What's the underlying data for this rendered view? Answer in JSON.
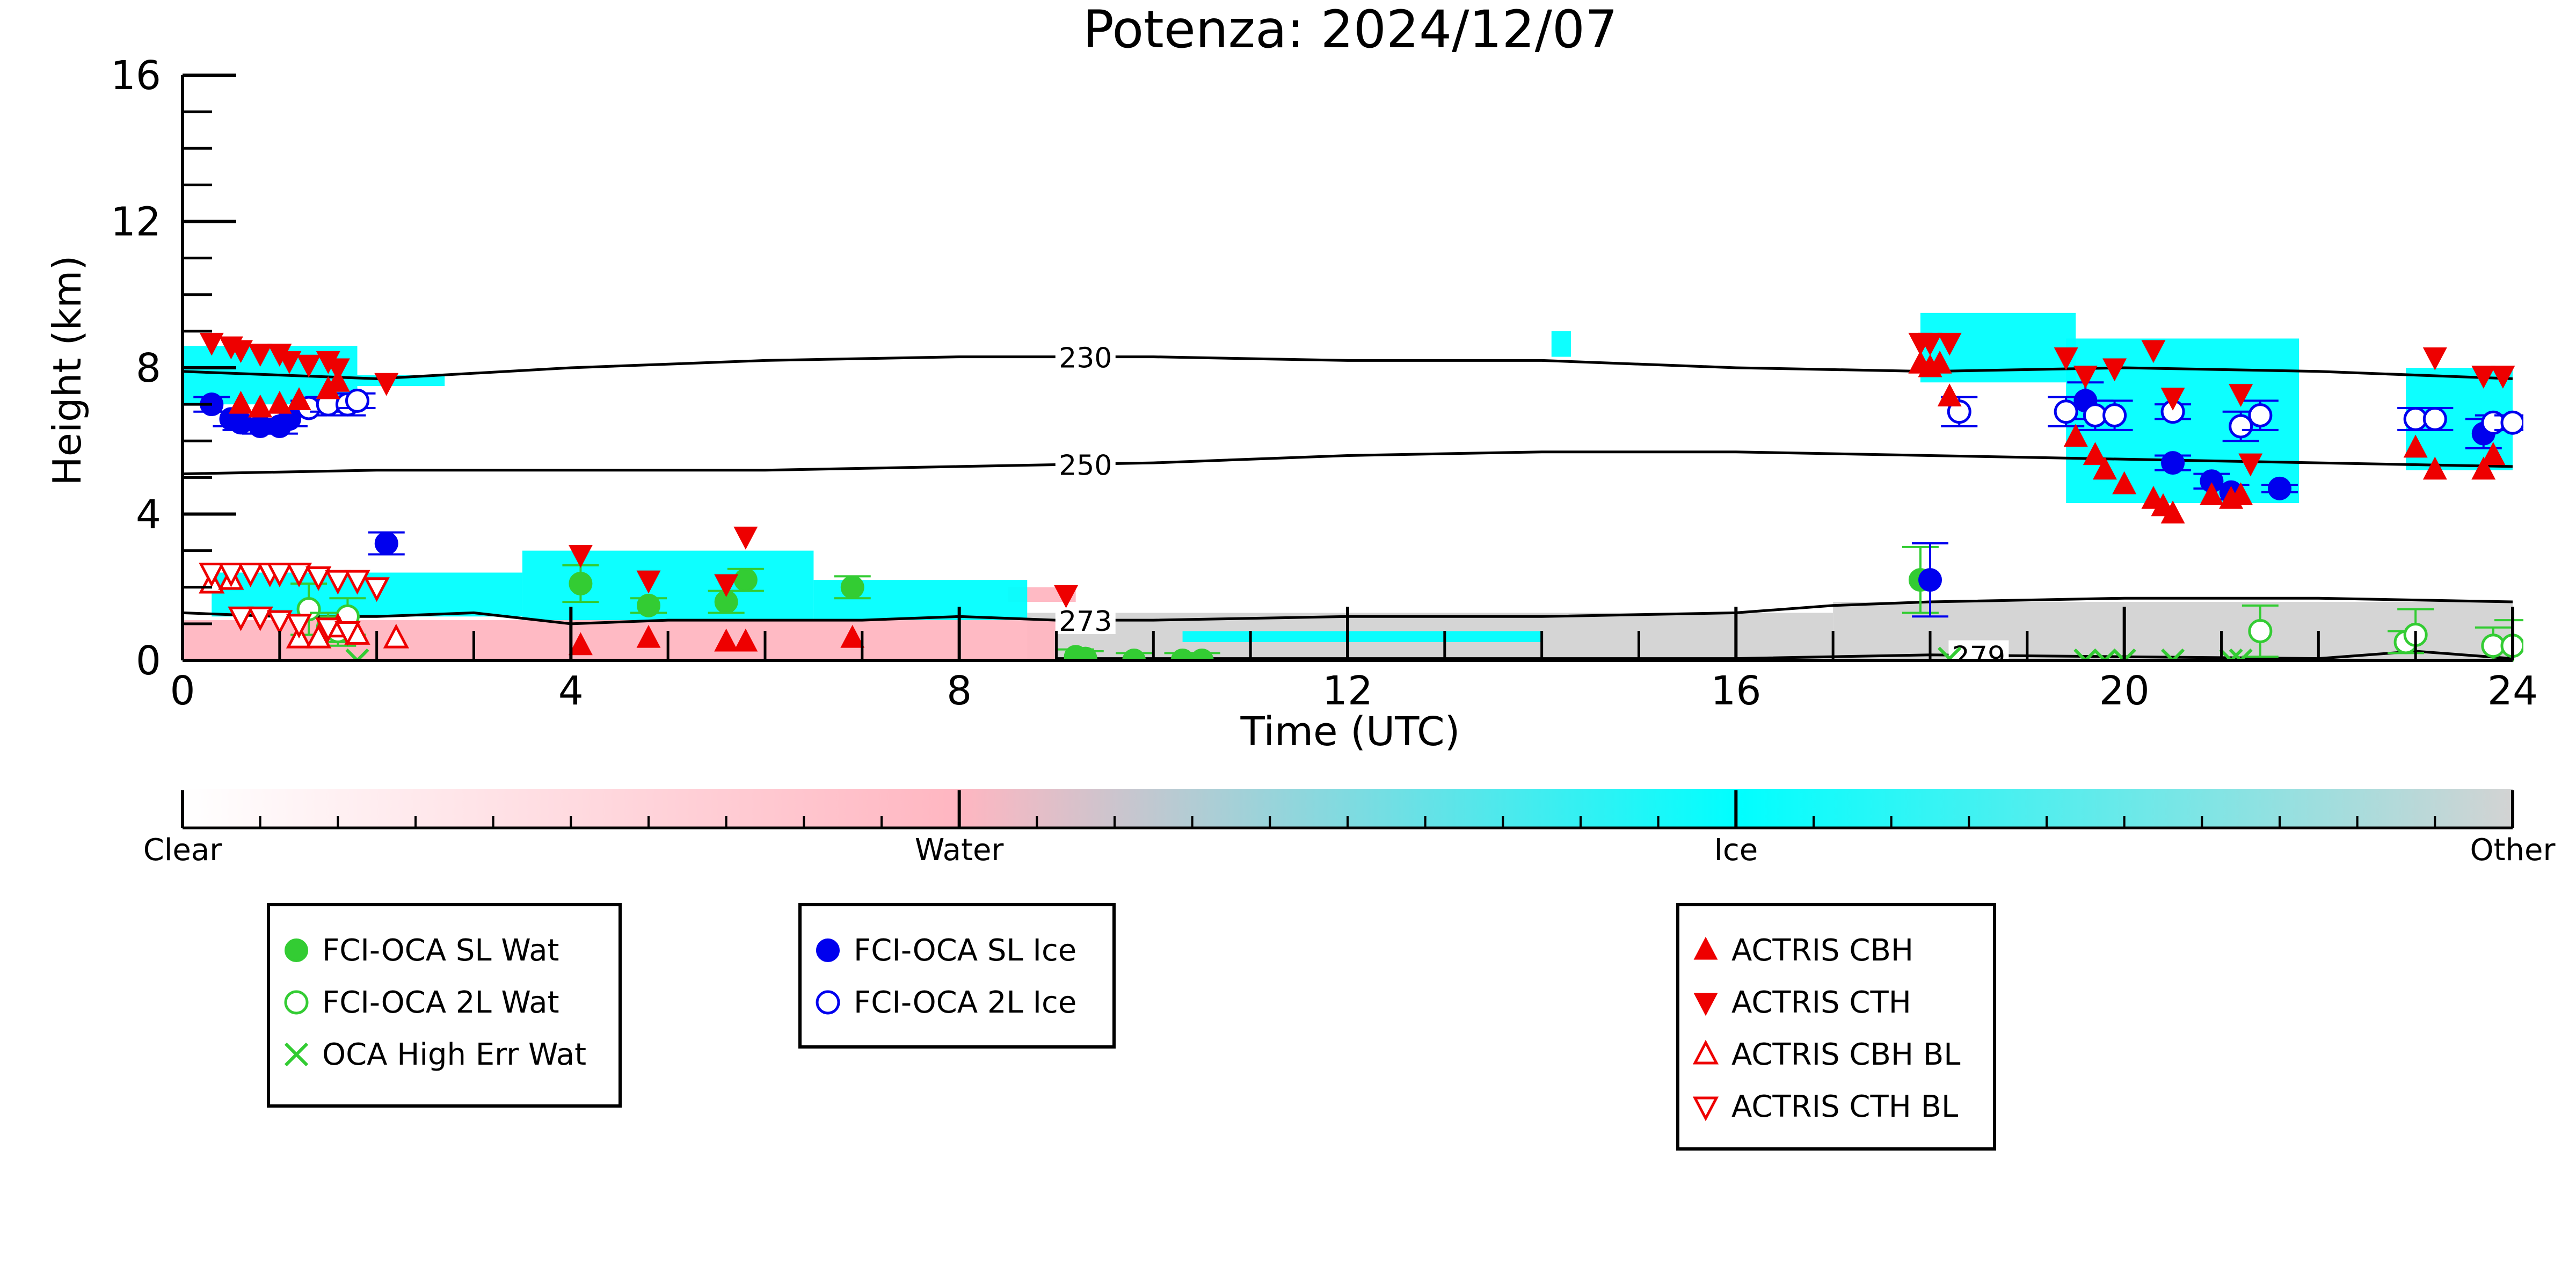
{
  "chart_data": {
    "type": "scatter",
    "title": "Potenza: 2024/12/07",
    "xlabel": "Time (UTC)",
    "ylabel": "Height (km)",
    "xlim": [
      0,
      24
    ],
    "ylim": [
      0,
      16
    ],
    "xticks": [
      0,
      4,
      8,
      12,
      16,
      20,
      24
    ],
    "yticks": [
      0,
      4,
      8,
      12,
      16
    ],
    "colorbar": {
      "labels": [
        "Clear",
        "Water",
        "Ice",
        "Other"
      ],
      "colors": [
        "#ffffff",
        "#ffb6c1",
        "#00ffff",
        "#d3d3d3"
      ]
    },
    "contours": [
      {
        "label": "230",
        "label_x": 9.3,
        "points": [
          [
            0,
            7.9
          ],
          [
            2,
            7.7
          ],
          [
            4,
            8.0
          ],
          [
            6,
            8.2
          ],
          [
            8,
            8.3
          ],
          [
            10,
            8.3
          ],
          [
            12,
            8.2
          ],
          [
            14,
            8.2
          ],
          [
            16,
            8.0
          ],
          [
            18,
            7.9
          ],
          [
            20,
            8.0
          ],
          [
            22,
            7.9
          ],
          [
            24,
            7.7
          ]
        ]
      },
      {
        "label": "250",
        "label_x": 9.3,
        "points": [
          [
            0,
            5.1
          ],
          [
            2,
            5.2
          ],
          [
            4,
            5.2
          ],
          [
            6,
            5.2
          ],
          [
            8,
            5.3
          ],
          [
            10,
            5.4
          ],
          [
            12,
            5.6
          ],
          [
            14,
            5.7
          ],
          [
            16,
            5.7
          ],
          [
            18,
            5.6
          ],
          [
            20,
            5.5
          ],
          [
            22,
            5.4
          ],
          [
            24,
            5.3
          ]
        ]
      },
      {
        "label": "273",
        "label_x": 9.3,
        "points": [
          [
            0,
            1.3
          ],
          [
            1,
            1.2
          ],
          [
            2,
            1.2
          ],
          [
            3,
            1.3
          ],
          [
            4,
            1.0
          ],
          [
            5,
            1.1
          ],
          [
            6,
            1.1
          ],
          [
            7,
            1.1
          ],
          [
            8,
            1.2
          ],
          [
            9,
            1.1
          ],
          [
            10,
            1.1
          ],
          [
            12,
            1.2
          ],
          [
            14,
            1.2
          ],
          [
            16,
            1.3
          ],
          [
            17,
            1.5
          ],
          [
            18,
            1.6
          ],
          [
            20,
            1.7
          ],
          [
            22,
            1.7
          ],
          [
            24,
            1.6
          ]
        ]
      },
      {
        "label": "279",
        "label_x": 18.5,
        "points": [
          [
            9,
            0.05
          ],
          [
            12,
            0.05
          ],
          [
            16,
            0.05
          ],
          [
            18,
            0.15
          ],
          [
            20,
            0.1
          ],
          [
            22,
            0.05
          ],
          [
            23,
            0.25
          ],
          [
            24,
            0.05
          ]
        ]
      }
    ],
    "cloud_regions": [
      {
        "class": "Ice",
        "color": "#00ffff",
        "x0": 0.0,
        "x1": 1.8,
        "y0": 7.0,
        "y1": 8.6
      },
      {
        "class": "Ice",
        "color": "#00ffff",
        "x0": 1.8,
        "x1": 2.7,
        "y0": 7.5,
        "y1": 7.8
      },
      {
        "class": "Ice",
        "color": "#00ffff",
        "x0": 14.1,
        "x1": 14.3,
        "y0": 8.3,
        "y1": 9.0
      },
      {
        "class": "Ice",
        "color": "#00ffff",
        "x0": 17.9,
        "x1": 19.5,
        "y0": 7.6,
        "y1": 9.5
      },
      {
        "class": "Ice",
        "color": "#00ffff",
        "x0": 19.4,
        "x1": 21.8,
        "y0": 4.3,
        "y1": 8.8
      },
      {
        "class": "Ice",
        "color": "#00ffff",
        "x0": 22.9,
        "x1": 24.0,
        "y0": 5.2,
        "y1": 8.0
      },
      {
        "class": "Ice",
        "color": "#00ffff",
        "x0": 0.3,
        "x1": 3.5,
        "y0": 1.2,
        "y1": 2.4
      },
      {
        "class": "Ice",
        "color": "#00ffff",
        "x0": 3.5,
        "x1": 6.5,
        "y0": 1.1,
        "y1": 3.0
      },
      {
        "class": "Ice",
        "color": "#00ffff",
        "x0": 6.5,
        "x1": 8.7,
        "y0": 1.1,
        "y1": 2.2
      },
      {
        "class": "Ice",
        "color": "#00ffff",
        "x0": 10.3,
        "x1": 14.0,
        "y0": 0.5,
        "y1": 0.8
      },
      {
        "class": "Water",
        "color": "#ffb6c1",
        "x0": 0.0,
        "x1": 9.0,
        "y0": 0.0,
        "y1": 1.1
      },
      {
        "class": "Water",
        "color": "#ffb6c1",
        "x0": 8.5,
        "x1": 9.2,
        "y0": 1.6,
        "y1": 2.0
      },
      {
        "class": "Other",
        "color": "#d3d3d3",
        "x0": 8.7,
        "x1": 17.0,
        "y0": 0.0,
        "y1": 1.3
      },
      {
        "class": "Other",
        "color": "#d3d3d3",
        "x0": 17.0,
        "x1": 24.0,
        "y0": 0.0,
        "y1": 1.6
      }
    ],
    "series": [
      {
        "name": "FCI-OCA SL Wat",
        "marker": "circle-filled",
        "color": "#33cc33",
        "points": [
          [
            4.1,
            2.1,
            0.5
          ],
          [
            4.8,
            1.5,
            0.2
          ],
          [
            5.6,
            1.6,
            0.3
          ],
          [
            5.8,
            2.2,
            0.3
          ],
          [
            6.9,
            2.0,
            0.3
          ],
          [
            9.2,
            0.1,
            0.2
          ],
          [
            9.3,
            0.05,
            0.2
          ],
          [
            9.8,
            0.0,
            0.2
          ],
          [
            10.3,
            0.0,
            0.2
          ],
          [
            10.5,
            0.0,
            0.2
          ],
          [
            17.9,
            2.2,
            0.9
          ]
        ]
      },
      {
        "name": "FCI-OCA 2L Wat",
        "marker": "circle-open",
        "color": "#33cc33",
        "points": [
          [
            1.3,
            1.4,
            0.7
          ],
          [
            1.5,
            0.9,
            0.4
          ],
          [
            1.6,
            0.8,
            0.4
          ],
          [
            1.7,
            1.2,
            0.5
          ],
          [
            21.4,
            0.8,
            0.7
          ],
          [
            22.9,
            0.5,
            0.3
          ],
          [
            23.0,
            0.7,
            0.7
          ],
          [
            23.8,
            0.4,
            0.5
          ],
          [
            24.0,
            0.4,
            0.7
          ]
        ]
      },
      {
        "name": "OCA High Err Wat",
        "marker": "x",
        "color": "#33cc33",
        "points": [
          [
            1.8,
            0.0
          ],
          [
            18.2,
            0.05
          ],
          [
            19.6,
            0.0
          ],
          [
            19.8,
            0.0
          ],
          [
            20.0,
            0.0
          ],
          [
            20.5,
            0.0
          ],
          [
            21.1,
            0.0
          ],
          [
            21.2,
            0.0
          ]
        ]
      },
      {
        "name": "FCI-OCA SL Ice",
        "marker": "circle-filled",
        "color": "#0000ee",
        "points": [
          [
            0.3,
            7.0,
            0.2
          ],
          [
            0.5,
            6.6,
            0.2
          ],
          [
            0.6,
            6.5,
            0.2
          ],
          [
            0.8,
            6.4,
            0.2
          ],
          [
            1.0,
            6.4,
            0.2
          ],
          [
            1.1,
            6.6,
            0.2
          ],
          [
            2.1,
            3.2,
            0.3
          ],
          [
            18.0,
            2.2,
            1.0
          ],
          [
            19.6,
            7.1,
            0.5
          ],
          [
            20.5,
            5.4,
            0.2
          ],
          [
            20.9,
            4.9,
            0.2
          ],
          [
            21.1,
            4.6,
            0.2
          ],
          [
            21.6,
            4.7,
            0.1
          ],
          [
            23.7,
            6.2,
            0.4
          ]
        ]
      },
      {
        "name": "FCI-OCA 2L Ice",
        "marker": "circle-open",
        "color": "#0000ee",
        "points": [
          [
            1.3,
            6.9,
            0.2
          ],
          [
            1.5,
            7.0,
            0.2
          ],
          [
            1.7,
            7.0,
            0.3
          ],
          [
            1.8,
            7.1,
            0.2
          ],
          [
            18.3,
            6.8,
            0.4
          ],
          [
            19.4,
            6.8,
            0.4
          ],
          [
            19.7,
            6.7,
            0.4
          ],
          [
            19.9,
            6.7,
            0.4
          ],
          [
            20.5,
            6.8,
            0.2
          ],
          [
            21.2,
            6.4,
            0.4
          ],
          [
            21.4,
            6.7,
            0.4
          ],
          [
            23.0,
            6.6,
            0.3
          ],
          [
            23.2,
            6.6,
            0.3
          ],
          [
            23.8,
            6.5,
            0.2
          ],
          [
            24.0,
            6.5,
            0.2
          ]
        ]
      },
      {
        "name": "ACTRIS CBH",
        "marker": "triangle-up-filled",
        "color": "#ee0000",
        "points": [
          [
            0.6,
            7.0
          ],
          [
            0.8,
            6.9
          ],
          [
            1.0,
            7.0
          ],
          [
            1.2,
            7.1
          ],
          [
            1.5,
            7.4
          ],
          [
            1.6,
            7.6
          ],
          [
            4.1,
            0.4
          ],
          [
            4.8,
            0.6
          ],
          [
            5.6,
            0.5
          ],
          [
            5.8,
            0.5
          ],
          [
            6.9,
            0.6
          ],
          [
            17.9,
            8.1
          ],
          [
            18.0,
            8.0
          ],
          [
            18.1,
            8.1
          ],
          [
            18.2,
            7.2
          ],
          [
            19.5,
            6.1
          ],
          [
            19.7,
            5.6
          ],
          [
            19.8,
            5.2
          ],
          [
            20.0,
            4.8
          ],
          [
            20.3,
            4.4
          ],
          [
            20.4,
            4.2
          ],
          [
            20.5,
            4.0
          ],
          [
            20.9,
            4.5
          ],
          [
            21.1,
            4.4
          ],
          [
            21.2,
            4.5
          ],
          [
            23.0,
            5.8
          ],
          [
            23.2,
            5.2
          ],
          [
            23.7,
            5.2
          ],
          [
            23.8,
            5.6
          ]
        ]
      },
      {
        "name": "ACTRIS CTH",
        "marker": "triangle-down-filled",
        "color": "#ee0000",
        "points": [
          [
            0.3,
            8.7
          ],
          [
            0.5,
            8.6
          ],
          [
            0.6,
            8.5
          ],
          [
            0.8,
            8.4
          ],
          [
            1.0,
            8.4
          ],
          [
            1.1,
            8.2
          ],
          [
            1.3,
            8.1
          ],
          [
            1.5,
            8.2
          ],
          [
            1.6,
            8.0
          ],
          [
            2.1,
            7.6
          ],
          [
            4.1,
            2.9
          ],
          [
            4.8,
            2.2
          ],
          [
            5.6,
            2.1
          ],
          [
            5.8,
            3.4
          ],
          [
            9.1,
            1.8
          ],
          [
            17.9,
            8.7
          ],
          [
            18.0,
            8.7
          ],
          [
            18.2,
            8.7
          ],
          [
            19.4,
            8.3
          ],
          [
            19.6,
            7.8
          ],
          [
            19.9,
            8.0
          ],
          [
            20.3,
            8.5
          ],
          [
            20.5,
            7.2
          ],
          [
            21.2,
            7.3
          ],
          [
            21.3,
            5.4
          ],
          [
            23.2,
            8.3
          ],
          [
            23.7,
            7.8
          ],
          [
            23.9,
            7.8
          ]
        ]
      },
      {
        "name": "ACTRIS CBH BL",
        "marker": "triangle-up-open",
        "color": "#ee0000",
        "points": [
          [
            0.3,
            2.1
          ],
          [
            0.5,
            2.2
          ],
          [
            1.2,
            0.6
          ],
          [
            1.4,
            0.6
          ],
          [
            1.6,
            0.9
          ],
          [
            1.8,
            0.7
          ],
          [
            2.2,
            0.6
          ]
        ]
      },
      {
        "name": "ACTRIS CTH BL",
        "marker": "triangle-down-open",
        "color": "#ee0000",
        "points": [
          [
            0.3,
            2.4
          ],
          [
            0.5,
            2.4
          ],
          [
            0.7,
            2.4
          ],
          [
            0.9,
            2.4
          ],
          [
            1.0,
            2.4
          ],
          [
            1.2,
            2.4
          ],
          [
            1.4,
            2.3
          ],
          [
            1.6,
            2.2
          ],
          [
            1.8,
            2.2
          ],
          [
            2.0,
            2.0
          ],
          [
            0.6,
            1.2
          ],
          [
            0.8,
            1.2
          ],
          [
            1.0,
            1.1
          ],
          [
            1.2,
            1.0
          ],
          [
            1.5,
            0.9
          ],
          [
            1.7,
            0.8
          ]
        ]
      }
    ],
    "legends": [
      {
        "entries": [
          "FCI-OCA SL Wat",
          "FCI-OCA 2L Wat",
          "OCA High Err Wat"
        ]
      },
      {
        "entries": [
          "FCI-OCA SL Ice",
          "FCI-OCA 2L Ice"
        ]
      },
      {
        "entries": [
          "ACTRIS CBH",
          "ACTRIS CTH",
          "ACTRIS CBH BL",
          "ACTRIS CTH BL"
        ]
      }
    ]
  }
}
